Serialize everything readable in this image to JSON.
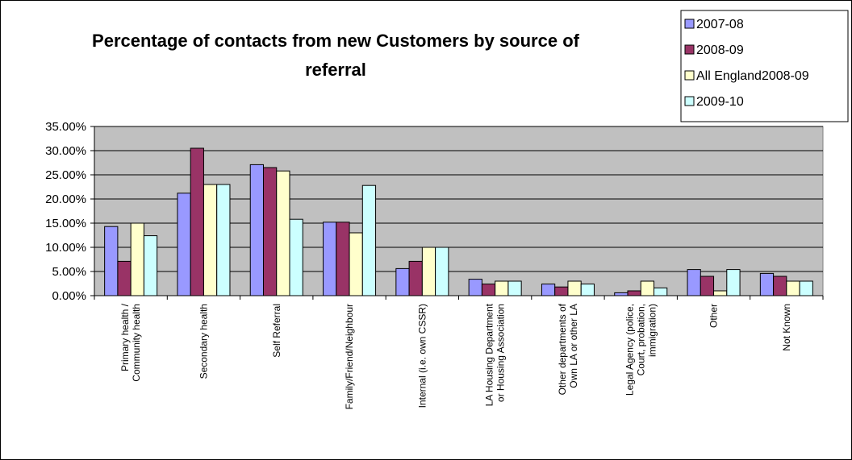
{
  "chart_data": {
    "type": "bar",
    "title_lines": [
      "Percentage  of contacts from new Customers by source of",
      "referral"
    ],
    "xlabel": "",
    "ylabel": "",
    "ylim": [
      0,
      0.35
    ],
    "yticks": [
      "35.00%",
      "30.00%",
      "25.00%",
      "20.00%",
      "15.00%",
      "10.00%",
      "5.00%",
      "0.00%"
    ],
    "grid": true,
    "legend_position": "top-right",
    "plot_background": "#c0c0c0",
    "categories": [
      [
        "Primary health /",
        "Community health"
      ],
      [
        "Secondary health"
      ],
      [
        "Self Referral"
      ],
      [
        "Family/Friend/Neighbour"
      ],
      [
        "Internal (i.e. own CSSR)"
      ],
      [
        "LA Housing Department",
        "or Housing Association"
      ],
      [
        "Other departments of",
        "Own LA or other LA"
      ],
      [
        "Legal Agency (police,",
        "Court, probation,",
        "immigration)"
      ],
      [
        "Other"
      ],
      [
        "Not Known"
      ]
    ],
    "series": [
      {
        "name": "2007-08",
        "color": "#9999ff",
        "values": [
          0.143,
          0.212,
          0.271,
          0.152,
          0.056,
          0.034,
          0.024,
          0.006,
          0.054,
          0.046
        ]
      },
      {
        "name": "2008-09",
        "color": "#993366",
        "values": [
          0.071,
          0.305,
          0.265,
          0.152,
          0.071,
          0.024,
          0.018,
          0.01,
          0.04,
          0.04
        ]
      },
      {
        "name": "All England2008-09",
        "color": "#ffffcc",
        "values": [
          0.15,
          0.23,
          0.258,
          0.13,
          0.1,
          0.03,
          0.03,
          0.03,
          0.01,
          0.03
        ]
      },
      {
        "name": "2009-10",
        "color": "#ccffff",
        "values": [
          0.124,
          0.23,
          0.158,
          0.228,
          0.1,
          0.03,
          0.024,
          0.016,
          0.054,
          0.03
        ]
      }
    ]
  }
}
